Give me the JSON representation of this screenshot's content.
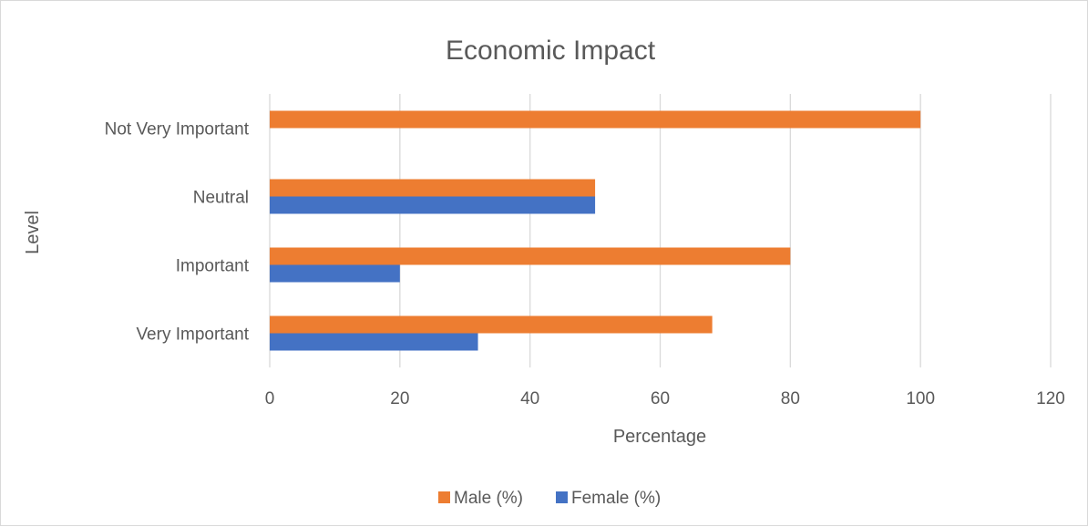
{
  "chart_data": {
    "type": "bar",
    "orientation": "horizontal",
    "title": "Economic Impact",
    "xlabel": "Percentage",
    "ylabel": "Level",
    "categories": [
      "Very Important",
      "Important",
      "Neutral",
      "Not Very Important"
    ],
    "series": [
      {
        "name": "Male (%)",
        "color": "#ED7D31",
        "values": [
          68,
          80,
          50,
          100
        ]
      },
      {
        "name": "Female (%)",
        "color": "#4472C4",
        "values": [
          32,
          20,
          50,
          0
        ]
      }
    ],
    "xlim": [
      0,
      120
    ],
    "xticks": [
      "0",
      "20",
      "40",
      "60",
      "80",
      "100",
      "120"
    ],
    "grid": true,
    "legend": "bottom"
  }
}
